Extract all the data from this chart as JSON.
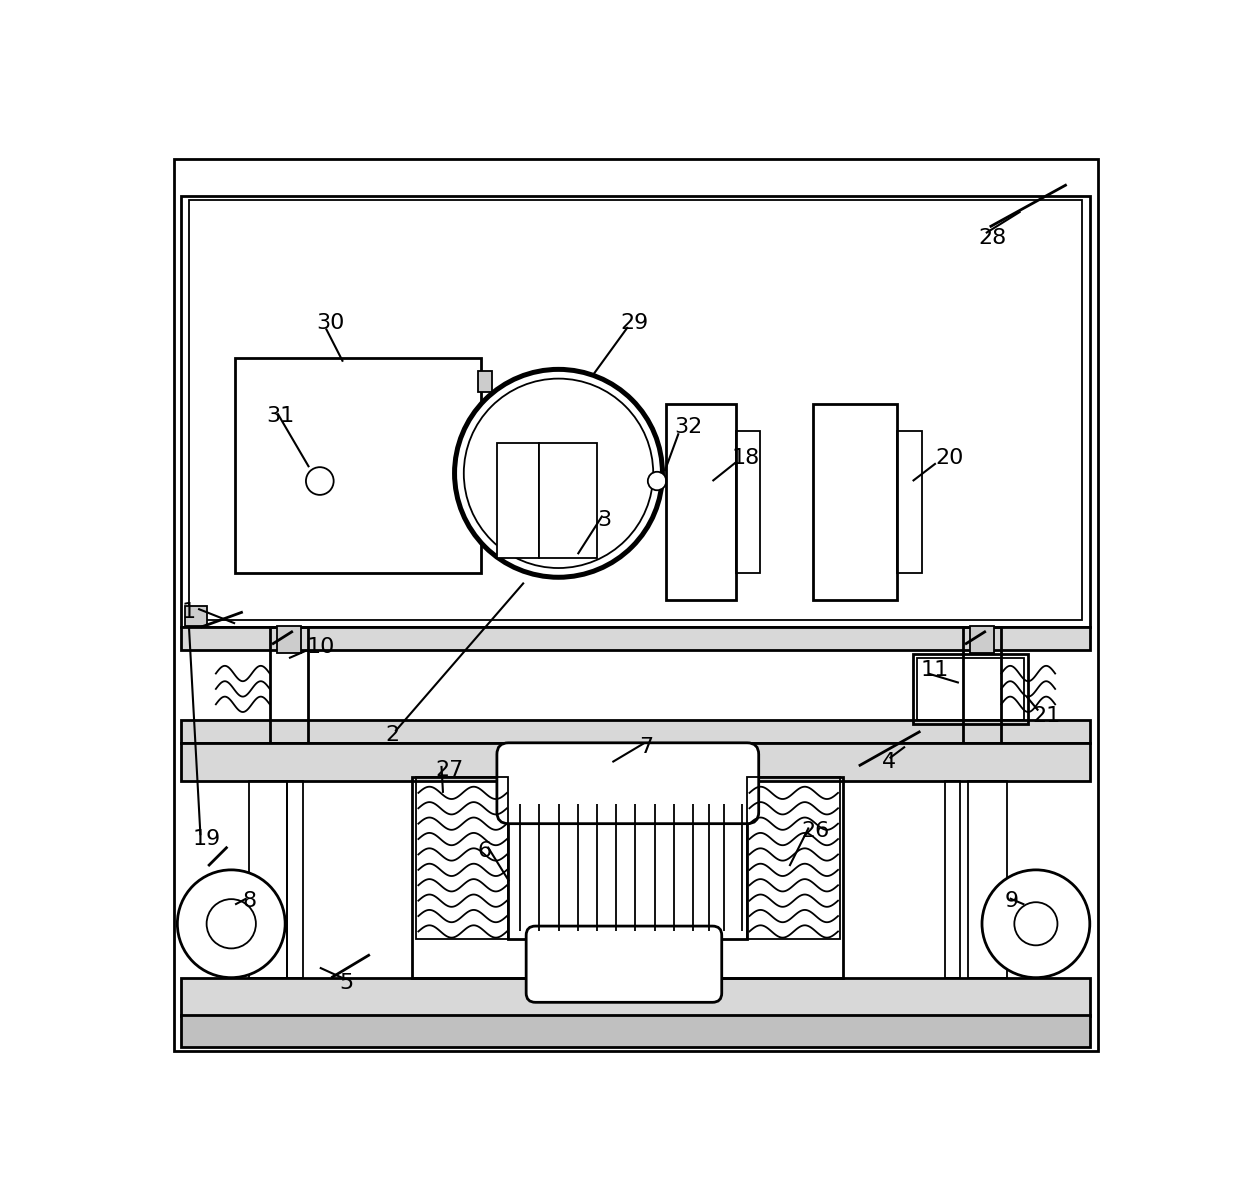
{
  "bg_color": "#ffffff",
  "lc": "#000000",
  "lw": 2.0,
  "tlw": 1.3,
  "fig_width": 12.4,
  "fig_height": 11.98
}
